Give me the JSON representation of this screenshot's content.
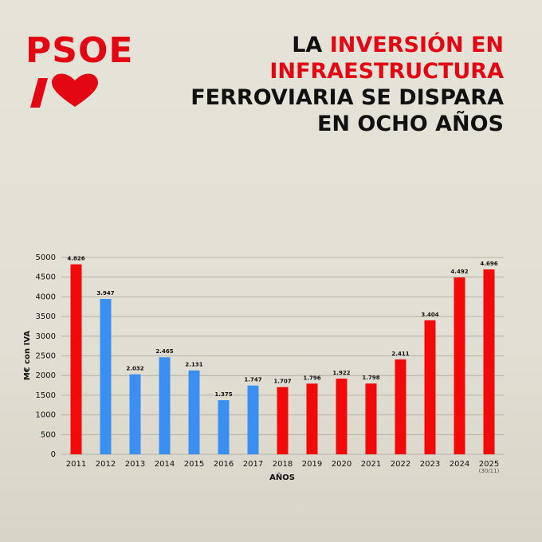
{
  "logo": "PSOE",
  "chart_data": {
    "type": "bar",
    "title_lines": [
      [
        {
          "text": "LA ",
          "color": "#111111"
        },
        {
          "text": "INVERSIÓN EN",
          "color": "#e30613"
        }
      ],
      [
        {
          "text": "INFRAESTRUCTURA",
          "color": "#e30613"
        }
      ],
      [
        {
          "text": "FERROVIARIA SE DISPARA",
          "color": "#111111"
        }
      ],
      [
        {
          "text": "EN OCHO AÑOS",
          "color": "#111111"
        }
      ]
    ],
    "y_label": "M€ con IVA",
    "x_label": "AÑOS",
    "categories": [
      "2011",
      "2012",
      "2013",
      "2014",
      "2015",
      "2016",
      "2017",
      "2018",
      "2019",
      "2020",
      "2021",
      "2022",
      "2023",
      "2024",
      "2025"
    ],
    "category_notes": [
      null,
      null,
      null,
      null,
      null,
      null,
      null,
      null,
      null,
      null,
      null,
      null,
      null,
      null,
      "(30/11)"
    ],
    "values": [
      4826,
      3947,
      2032,
      2465,
      2131,
      1375,
      1747,
      1707,
      1796,
      1922,
      1798,
      2411,
      3404,
      4492,
      4696
    ],
    "value_labels": [
      "4.826",
      "3.947",
      "2.032",
      "2.465",
      "2.131",
      "1.375",
      "1.747",
      "1.707",
      "1.796",
      "1.922",
      "1.798",
      "2.411",
      "3.404",
      "4.492",
      "4.696"
    ],
    "colors": [
      "#f20a0a",
      "#3b8ff0",
      "#3b8ff0",
      "#3b8ff0",
      "#3b8ff0",
      "#3b8ff0",
      "#3b8ff0",
      "#f20a0a",
      "#f20a0a",
      "#f20a0a",
      "#f20a0a",
      "#f20a0a",
      "#f20a0a",
      "#f20a0a",
      "#f20a0a"
    ],
    "ylim": [
      0,
      5000
    ],
    "yticks": [
      0,
      500,
      1000,
      1500,
      2000,
      2500,
      3000,
      3500,
      4000,
      4500,
      5000
    ],
    "grid": true
  }
}
